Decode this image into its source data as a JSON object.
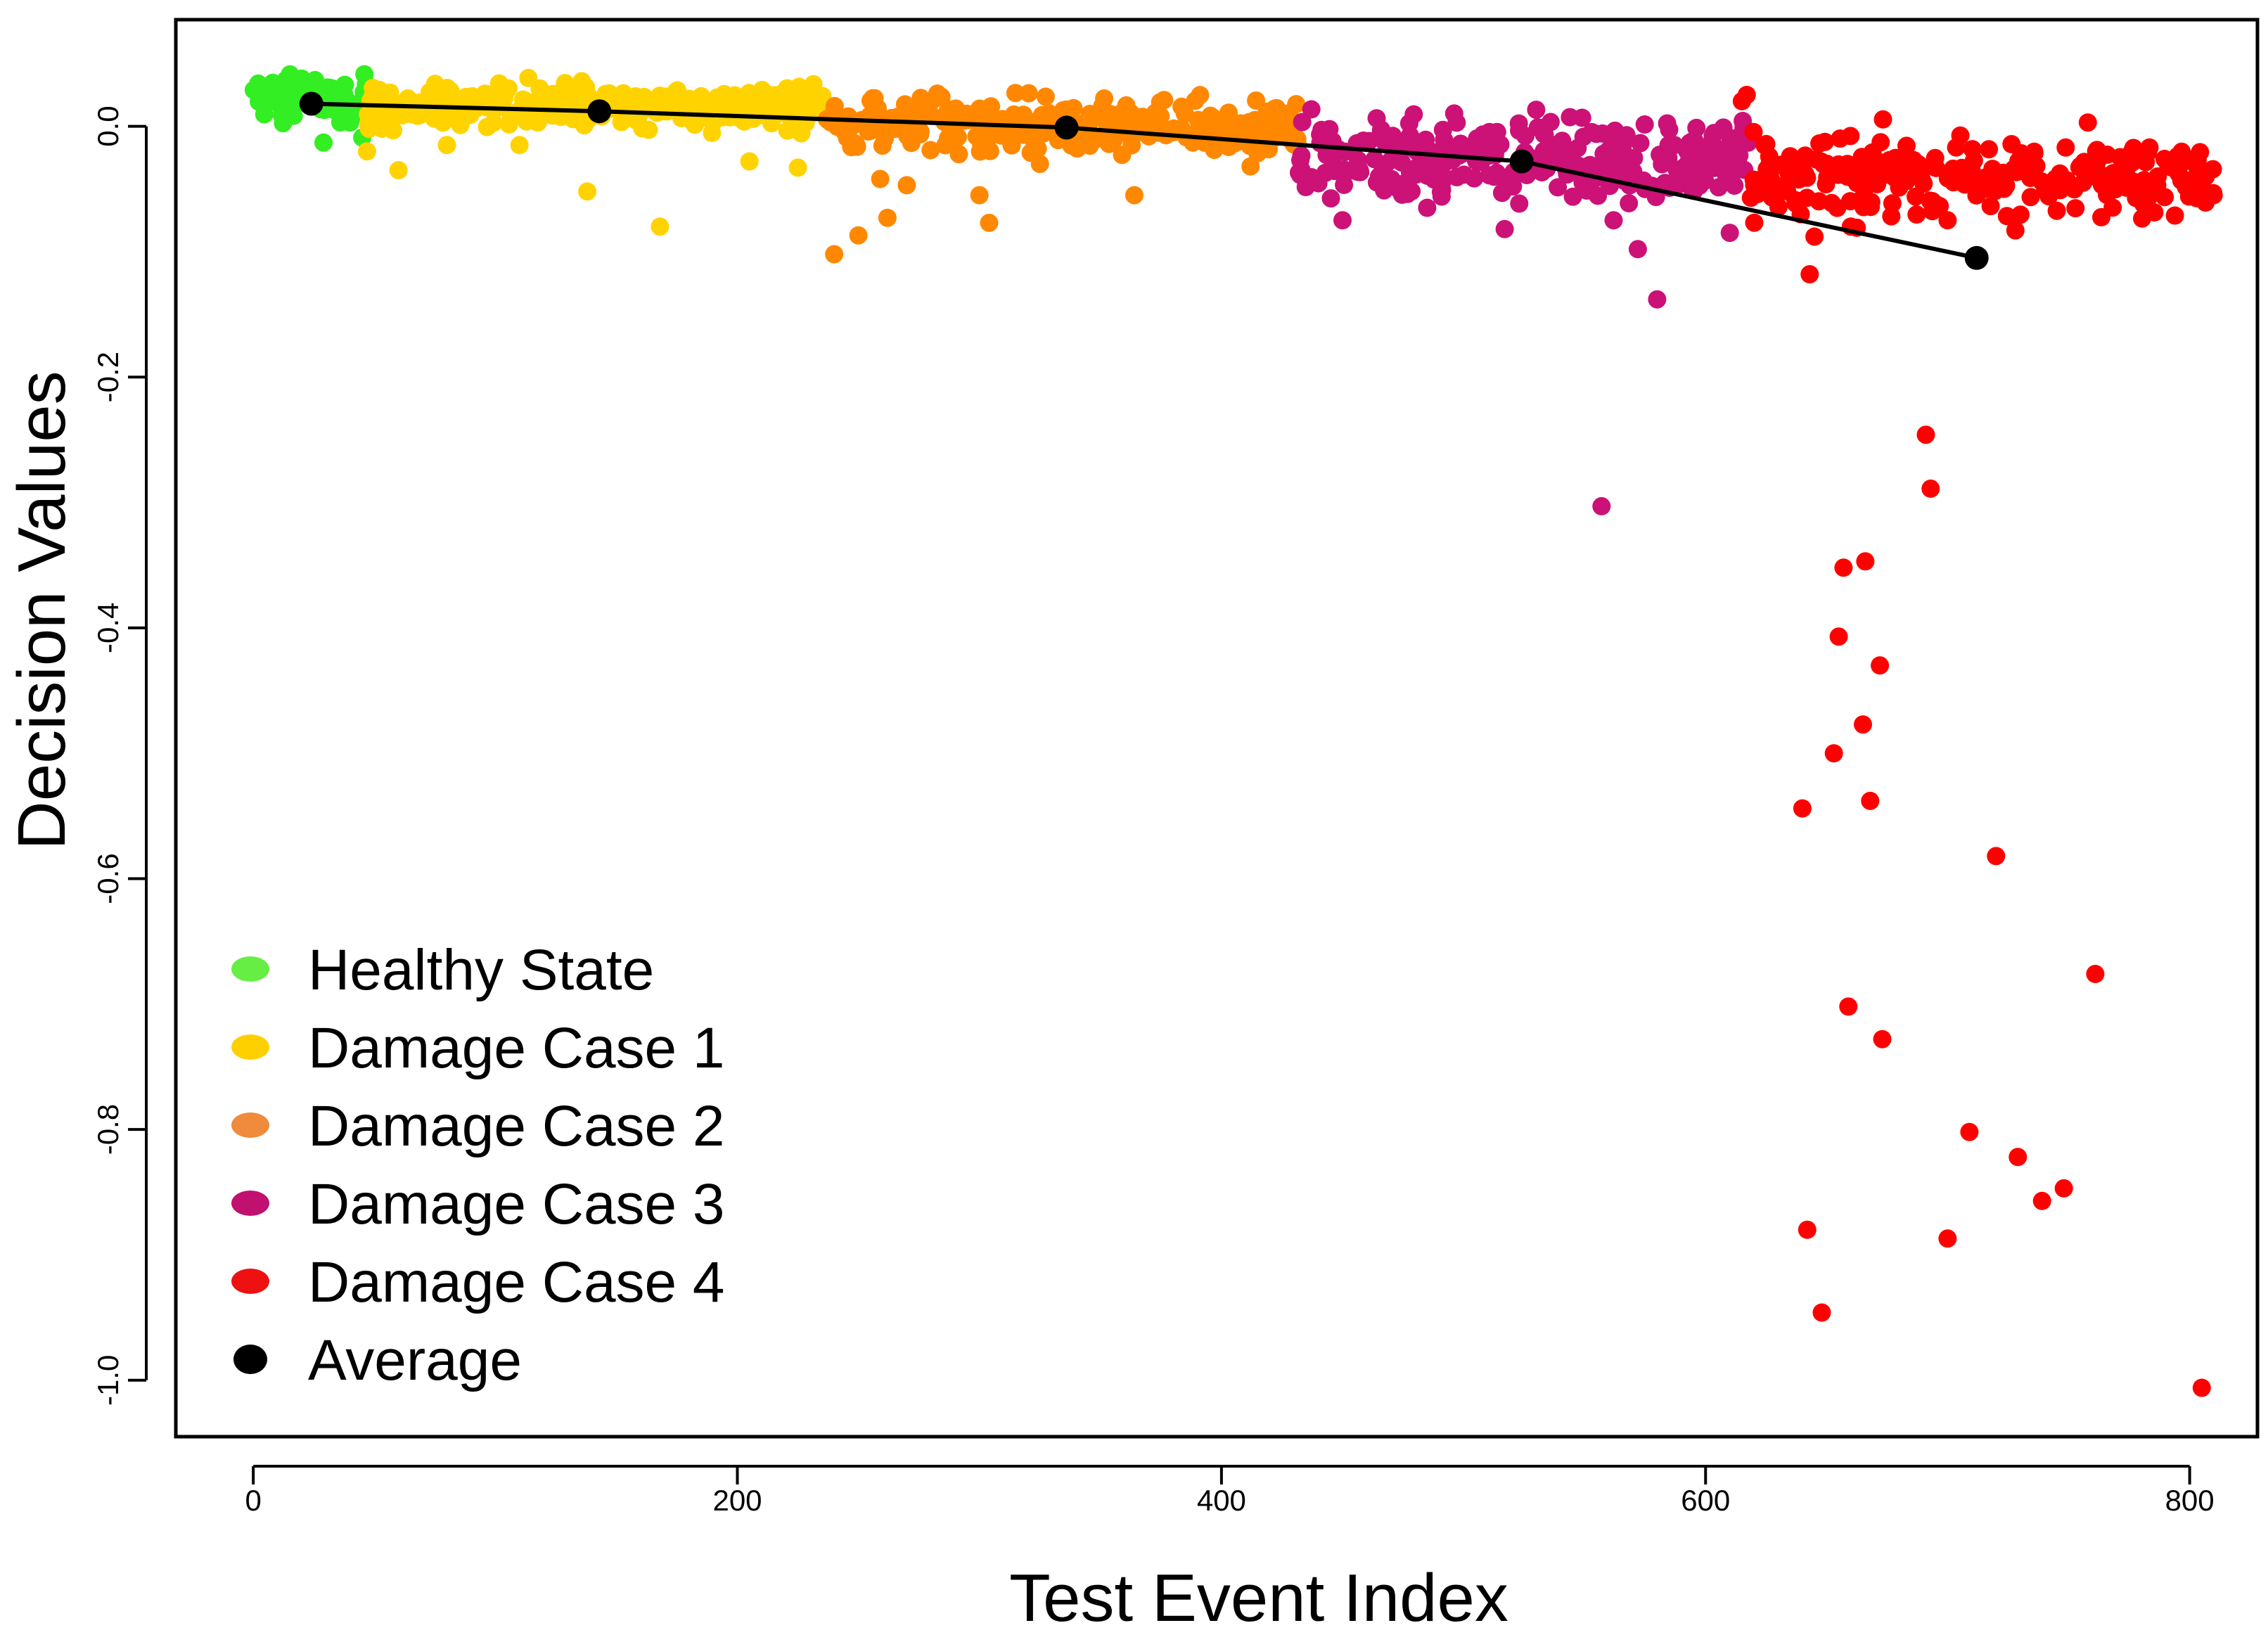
{
  "chart_data": {
    "type": "scatter",
    "title": "",
    "xlabel": "Test Event Index",
    "ylabel": "Decision Values",
    "xlim": [
      -32,
      828
    ],
    "ylim": [
      -1.045,
      0.085
    ],
    "xticks": [
      0,
      200,
      400,
      600,
      800
    ],
    "yticks": [
      0.0,
      -0.2,
      -0.4,
      -0.6,
      -0.8,
      -1.0
    ],
    "xtick_labels": [
      "0",
      "200",
      "400",
      "600",
      "800"
    ],
    "ytick_labels": [
      "0.0",
      "-0.2",
      "-0.4",
      "-0.6",
      "-0.8",
      "-1.0"
    ],
    "legend_position": "bottom-left",
    "series": [
      {
        "name": "Healthy State",
        "color": "#33ee22",
        "legend_color": "#66ee44",
        "x_range": [
          0,
          47
        ],
        "band_center": 0.022,
        "band_spread": 0.012,
        "n": 75,
        "outliers": [
          [
            29,
            -0.013
          ],
          [
            45,
            -0.009
          ],
          [
            40,
            0.003
          ],
          [
            20,
            0.038
          ]
        ]
      },
      {
        "name": "Damage Case 1",
        "color": "#ffd300",
        "legend_color": "#ffd000",
        "x_range": [
          47,
          237
        ],
        "band_center": 0.016,
        "band_spread": 0.012,
        "n": 300,
        "outliers": [
          [
            168,
            -0.08
          ],
          [
            138,
            -0.052
          ],
          [
            60,
            -0.035
          ],
          [
            225,
            -0.033
          ],
          [
            80,
            -0.015
          ],
          [
            110,
            -0.015
          ],
          [
            47,
            -0.02
          ],
          [
            205,
            -0.028
          ]
        ]
      },
      {
        "name": "Damage Case 2",
        "color": "#ff8800",
        "legend_color": "#f08a3c",
        "x_range": [
          237,
          432
        ],
        "band_center": 0.0,
        "band_spread": 0.015,
        "n": 300,
        "outliers": [
          [
            240,
            -0.102
          ],
          [
            250,
            -0.087
          ],
          [
            262,
            -0.073
          ],
          [
            304,
            -0.077
          ],
          [
            300,
            -0.055
          ],
          [
            364,
            -0.055
          ],
          [
            259,
            -0.042
          ],
          [
            325,
            -0.03
          ],
          [
            412,
            -0.032
          ],
          [
            270,
            -0.047
          ]
        ]
      },
      {
        "name": "Damage Case 3",
        "color": "#cc1177",
        "legend_color": "#c01070",
        "x_range": [
          432,
          618
        ],
        "band_center": -0.025,
        "band_spread": 0.022,
        "n": 280,
        "outliers": [
          [
            557,
            -0.303
          ],
          [
            580,
            -0.138
          ],
          [
            572,
            -0.098
          ],
          [
            610,
            -0.085
          ],
          [
            450,
            -0.075
          ],
          [
            517,
            -0.082
          ],
          [
            485,
            -0.065
          ],
          [
            562,
            -0.075
          ],
          [
            432,
            -0.037
          ],
          [
            575,
            -0.05
          ]
        ]
      },
      {
        "name": "Damage Case 4",
        "color": "#ff0000",
        "legend_color": "#ee1111",
        "x_range": [
          618,
          810
        ],
        "band_center": -0.04,
        "band_spread": 0.022,
        "n": 250,
        "outliers": [
          [
            691,
            -0.246
          ],
          [
            693,
            -0.289
          ],
          [
            657,
            -0.352
          ],
          [
            666,
            -0.347
          ],
          [
            655,
            -0.407
          ],
          [
            672,
            -0.43
          ],
          [
            665,
            -0.477
          ],
          [
            653,
            -0.5
          ],
          [
            640,
            -0.544
          ],
          [
            668,
            -0.538
          ],
          [
            720,
            -0.582
          ],
          [
            761,
            -0.676
          ],
          [
            659,
            -0.702
          ],
          [
            673,
            -0.728
          ],
          [
            709,
            -0.802
          ],
          [
            729,
            -0.822
          ],
          [
            748,
            -0.847
          ],
          [
            739,
            -0.857
          ],
          [
            642,
            -0.88
          ],
          [
            700,
            -0.887
          ],
          [
            648,
            -0.946
          ],
          [
            805,
            -1.006
          ],
          [
            643,
            -0.118
          ],
          [
            645,
            -0.088
          ],
          [
            617,
            0.025
          ],
          [
            615,
            0.02
          ],
          [
            660,
            -0.08
          ],
          [
            728,
            -0.083
          ],
          [
            700,
            -0.075
          ]
        ]
      }
    ],
    "average": {
      "name": "Average",
      "color": "#000000",
      "points": [
        [
          24,
          0.018
        ],
        [
          143,
          0.012
        ],
        [
          336,
          -0.001
        ],
        [
          524,
          -0.028
        ],
        [
          712,
          -0.105
        ]
      ]
    }
  }
}
